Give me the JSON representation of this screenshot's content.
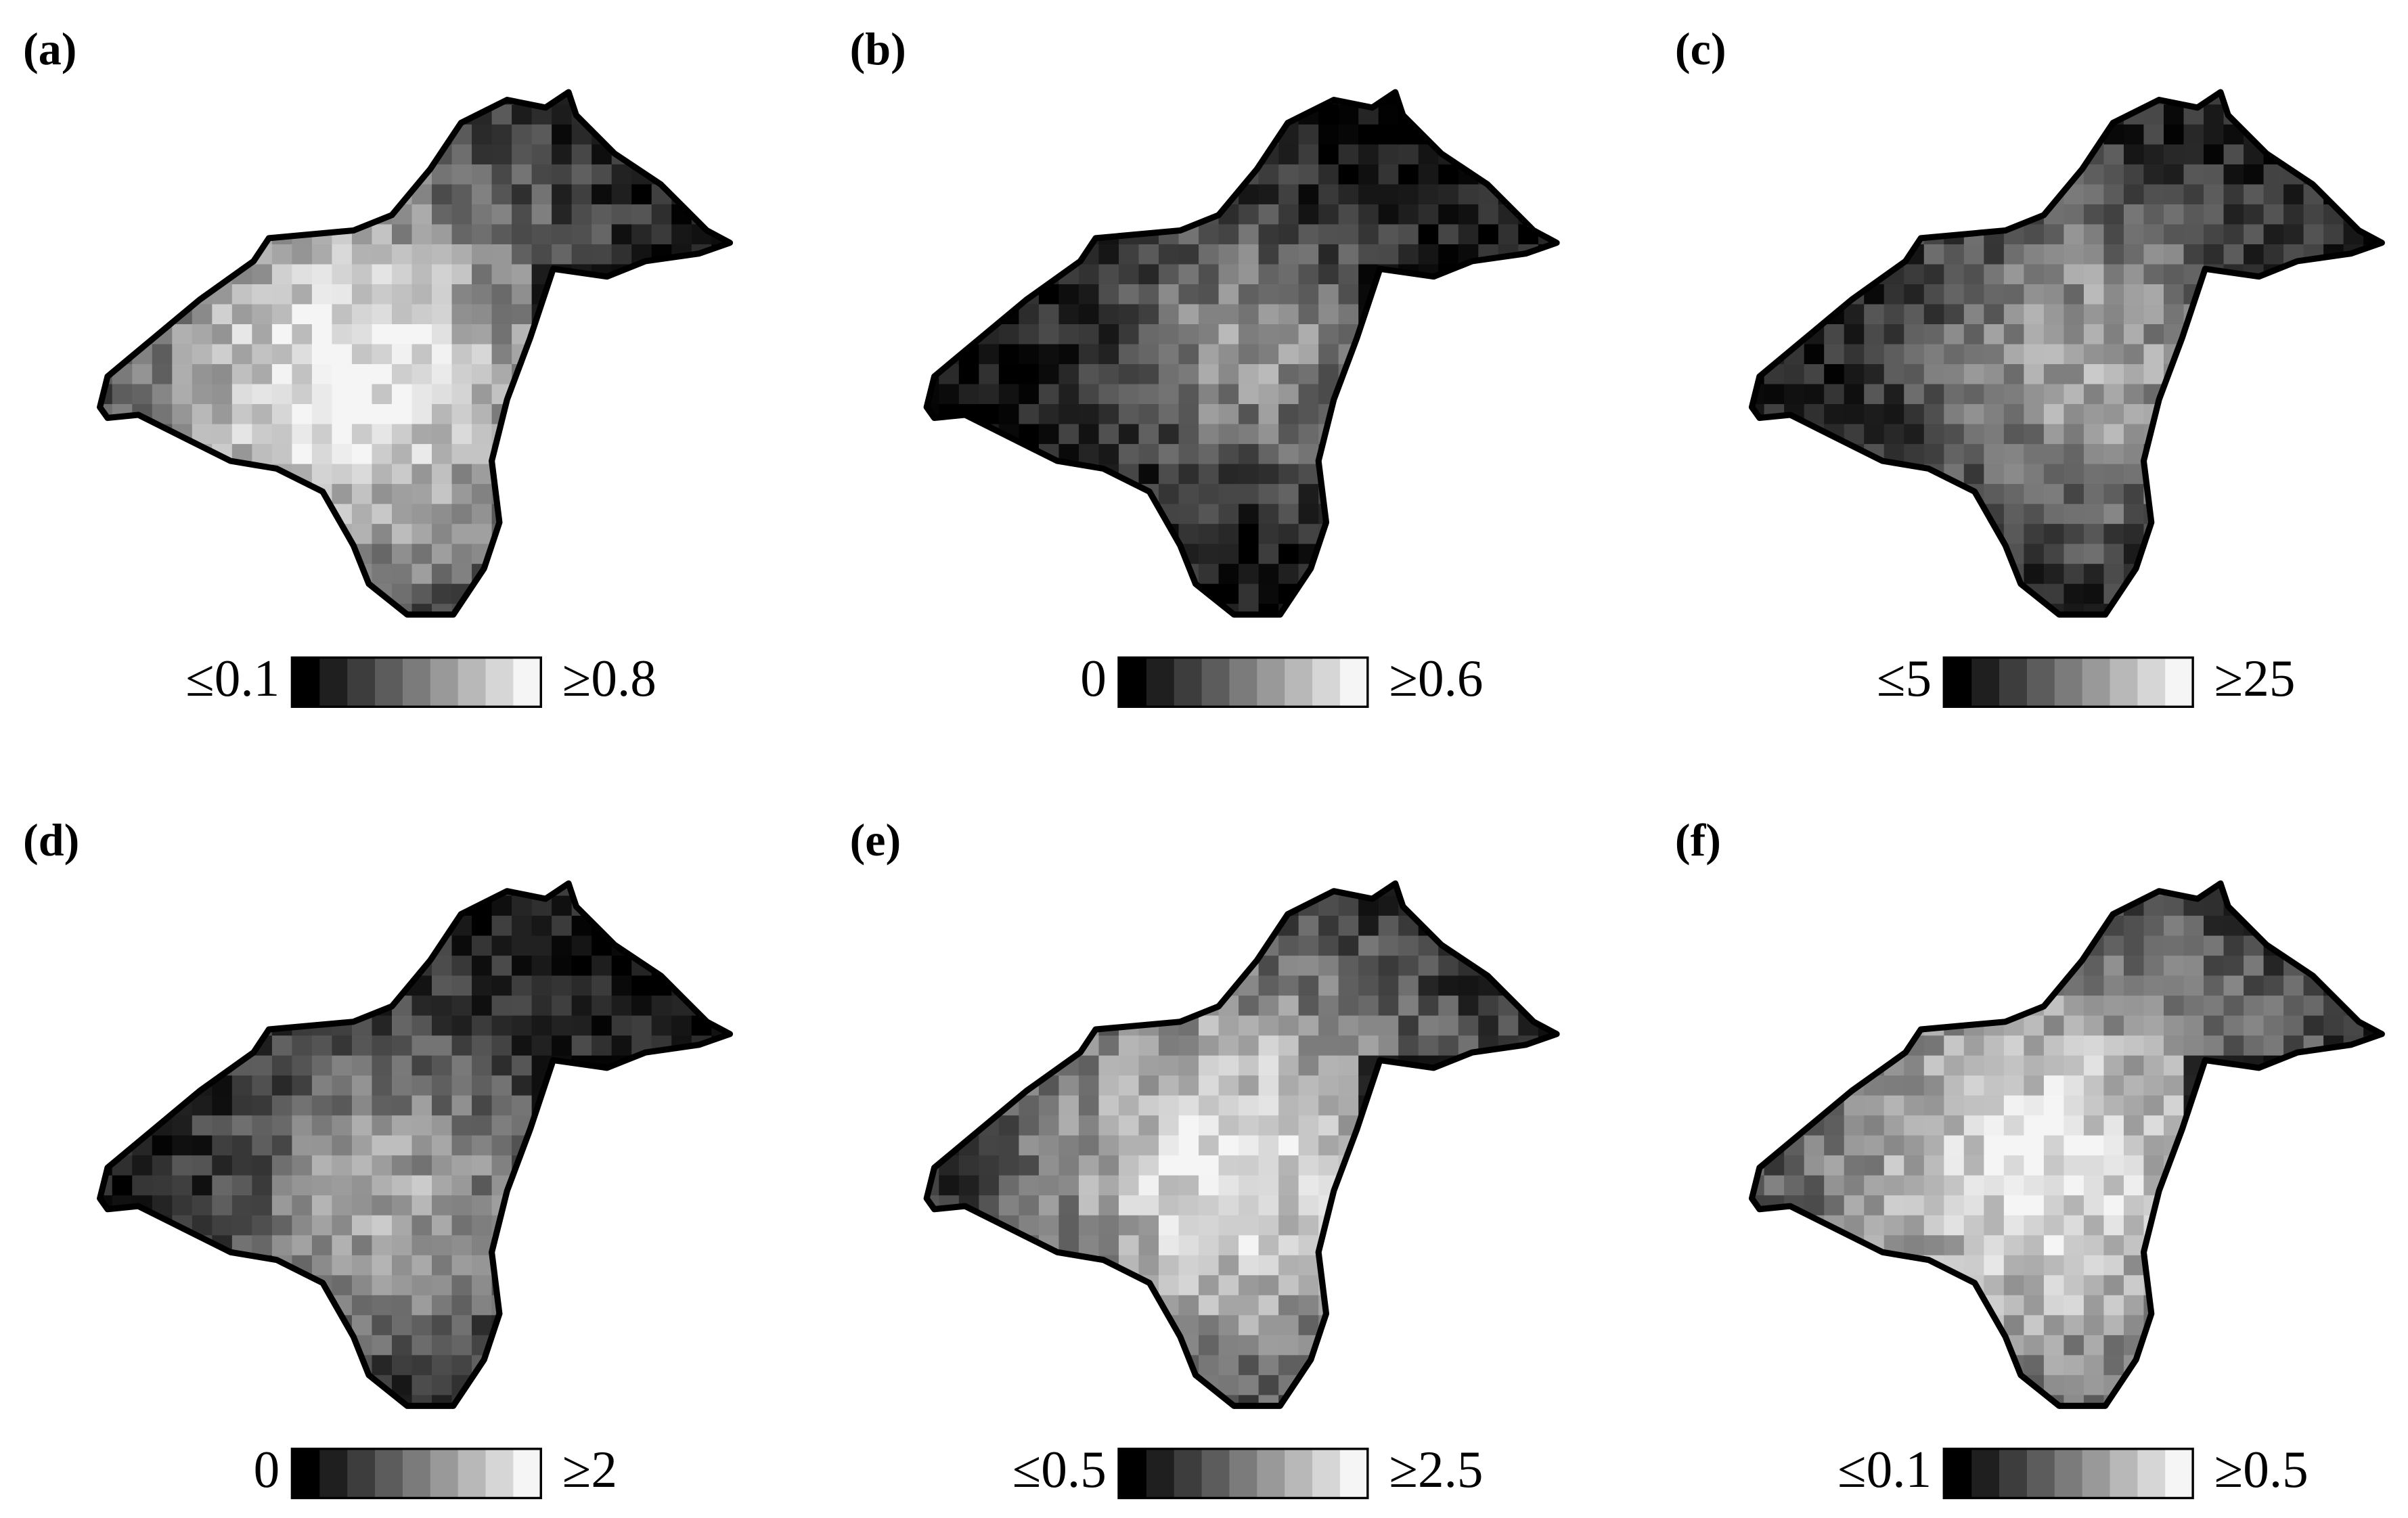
{
  "panels": [
    {
      "label": "(a)",
      "min_label": "≤0.1",
      "max_label": "≥0.8"
    },
    {
      "label": "(b)",
      "min_label": "0",
      "max_label": "≥0.6"
    },
    {
      "label": "(c)",
      "min_label": "≤5",
      "max_label": "≥25"
    },
    {
      "label": "(d)",
      "min_label": "0",
      "max_label": "≥2"
    },
    {
      "label": "(e)",
      "min_label": "≤0.5",
      "max_label": "≥2.5"
    },
    {
      "label": "(f)",
      "min_label": "≤0.1",
      "max_label": "≥0.5"
    }
  ]
}
